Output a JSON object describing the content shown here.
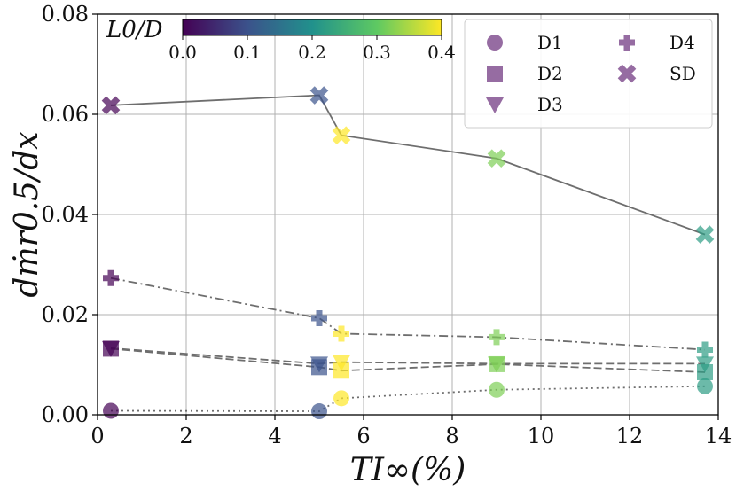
{
  "chart_data": {
    "type": "scatter",
    "title": "",
    "xlabel": "TI∞(%)",
    "ylabel": "dṁr0.5/dx",
    "xlim": [
      0,
      14
    ],
    "ylim": [
      0,
      0.08
    ],
    "xticks": [
      0,
      2,
      4,
      6,
      8,
      10,
      12,
      14
    ],
    "xtick_labels": [
      "0",
      "2",
      "4",
      "6",
      "8",
      "10",
      "12",
      "14"
    ],
    "yticks": [
      0,
      0.02,
      0.04,
      0.06,
      0.08
    ],
    "ytick_labels": [
      "0.00",
      "0.02",
      "0.04",
      "0.06",
      "0.08"
    ],
    "grid": true,
    "legend_position": "top-right",
    "colorbar": {
      "label": "L0/D",
      "range": [
        0,
        0.4
      ],
      "ticks": [
        0,
        0.1,
        0.2,
        0.3,
        0.4
      ],
      "tick_labels": [
        "0.0",
        "0.1",
        "0.2",
        "0.3",
        "0.4"
      ],
      "colormap": "viridis",
      "stops": [
        "#440154",
        "#3b528b",
        "#21918c",
        "#5ec962",
        "#fde725"
      ]
    },
    "series": [
      {
        "name": "D1",
        "marker": "circle",
        "line": "dotted",
        "x": [
          0.3,
          5.0,
          5.5,
          9.0,
          13.7
        ],
        "y": [
          0.0008,
          0.0007,
          0.0033,
          0.005,
          0.0057
        ],
        "c": [
          0.0,
          0.1,
          0.4,
          0.32,
          0.22
        ]
      },
      {
        "name": "D2",
        "marker": "square",
        "line": "dashed",
        "x": [
          0.3,
          5.0,
          5.5,
          9.0,
          13.7
        ],
        "y": [
          0.0132,
          0.0095,
          0.0088,
          0.0101,
          0.0085
        ],
        "c": [
          0.0,
          0.1,
          0.4,
          0.32,
          0.22
        ]
      },
      {
        "name": "D3",
        "marker": "triangle-down",
        "line": "dashed",
        "x": [
          0.3,
          5.0,
          5.5,
          9.0,
          13.7
        ],
        "y": [
          0.0133,
          0.0102,
          0.0105,
          0.0102,
          0.0102
        ],
        "c": [
          0.0,
          0.1,
          0.4,
          0.32,
          0.22
        ]
      },
      {
        "name": "D4",
        "marker": "plus",
        "line": "dashdot",
        "x": [
          0.3,
          5.0,
          5.5,
          9.0,
          13.7
        ],
        "y": [
          0.0273,
          0.0193,
          0.0162,
          0.0155,
          0.013
        ],
        "c": [
          0.0,
          0.1,
          0.4,
          0.32,
          0.22
        ]
      },
      {
        "name": "SD",
        "marker": "x",
        "line": "solid",
        "x": [
          0.3,
          5.0,
          5.5,
          9.0,
          13.7
        ],
        "y": [
          0.0618,
          0.0638,
          0.0558,
          0.0512,
          0.036
        ],
        "c": [
          0.0,
          0.1,
          0.4,
          0.32,
          0.22
        ]
      }
    ]
  }
}
